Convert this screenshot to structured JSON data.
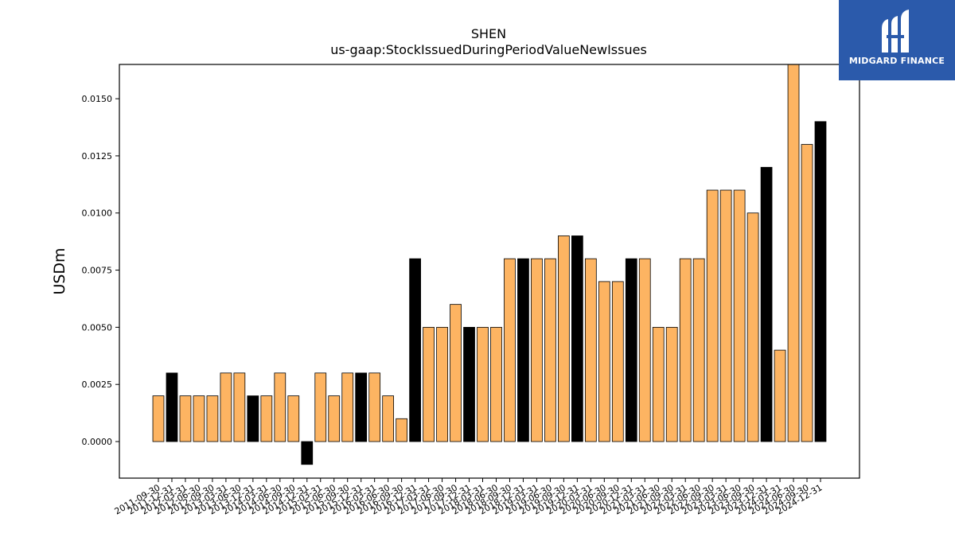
{
  "chart_data": {
    "type": "bar",
    "title": "SHEN",
    "subtitle": "us-gaap:StockIssuedDuringPeriodValueNewIssues",
    "xlabel": "",
    "ylabel": "USDm",
    "ylim": [
      -0.0016,
      0.0165
    ],
    "yticks": [
      "0.0000",
      "0.0025",
      "0.0050",
      "0.0075",
      "0.0100",
      "0.0125",
      "0.0150"
    ],
    "grid": false,
    "colors": {
      "quarter": "#fdb462",
      "year_end": "#000000",
      "edge": "#000000"
    },
    "categories": [
      "2011-09-30",
      "2011-12-31",
      "2012-03-31",
      "2012-06-30",
      "2012-09-30",
      "2013-03-31",
      "2013-06-30",
      "2013-12-31",
      "2014-03-31",
      "2014-06-30",
      "2014-09-30",
      "2014-12-31",
      "2015-03-31",
      "2015-06-30",
      "2015-09-30",
      "2015-12-31",
      "2016-03-31",
      "2016-06-30",
      "2016-09-30",
      "2016-12-31",
      "2017-03-31",
      "2017-06-30",
      "2017-09-30",
      "2017-12-31",
      "2018-03-31",
      "2018-06-30",
      "2018-09-30",
      "2018-12-31",
      "2019-03-31",
      "2019-06-30",
      "2019-09-30",
      "2019-12-31",
      "2020-03-31",
      "2020-06-30",
      "2020-09-30",
      "2020-12-31",
      "2021-03-31",
      "2021-06-30",
      "2021-09-30",
      "2022-03-31",
      "2022-06-30",
      "2022-09-30",
      "2023-03-31",
      "2023-06-30",
      "2023-09-30",
      "2023-12-31",
      "2024-03-31",
      "2024-06-30",
      "2024-09-30",
      "2024-12-31"
    ],
    "values": [
      0.002,
      0.003,
      0.002,
      0.002,
      0.002,
      0.003,
      0.003,
      0.002,
      0.002,
      0.003,
      0.002,
      -0.001,
      0.003,
      0.002,
      0.003,
      0.003,
      0.003,
      0.002,
      0.001,
      0.008,
      0.005,
      0.005,
      0.006,
      0.005,
      0.005,
      0.005,
      0.008,
      0.008,
      0.008,
      0.008,
      0.009,
      0.009,
      0.008,
      0.007,
      0.007,
      0.008,
      0.008,
      0.005,
      0.005,
      0.008,
      0.008,
      0.011,
      0.011,
      0.011,
      0.01,
      0.012,
      0.004,
      0.017,
      0.013,
      0.014
    ],
    "highlight": [
      false,
      true,
      false,
      false,
      false,
      false,
      false,
      true,
      false,
      false,
      false,
      true,
      false,
      false,
      false,
      true,
      false,
      false,
      false,
      true,
      false,
      false,
      false,
      true,
      false,
      false,
      false,
      true,
      false,
      false,
      false,
      true,
      false,
      false,
      false,
      true,
      false,
      false,
      false,
      false,
      false,
      false,
      false,
      false,
      false,
      true,
      false,
      false,
      false,
      true
    ]
  },
  "logo": {
    "text": "MIDGARD FINANCE"
  }
}
